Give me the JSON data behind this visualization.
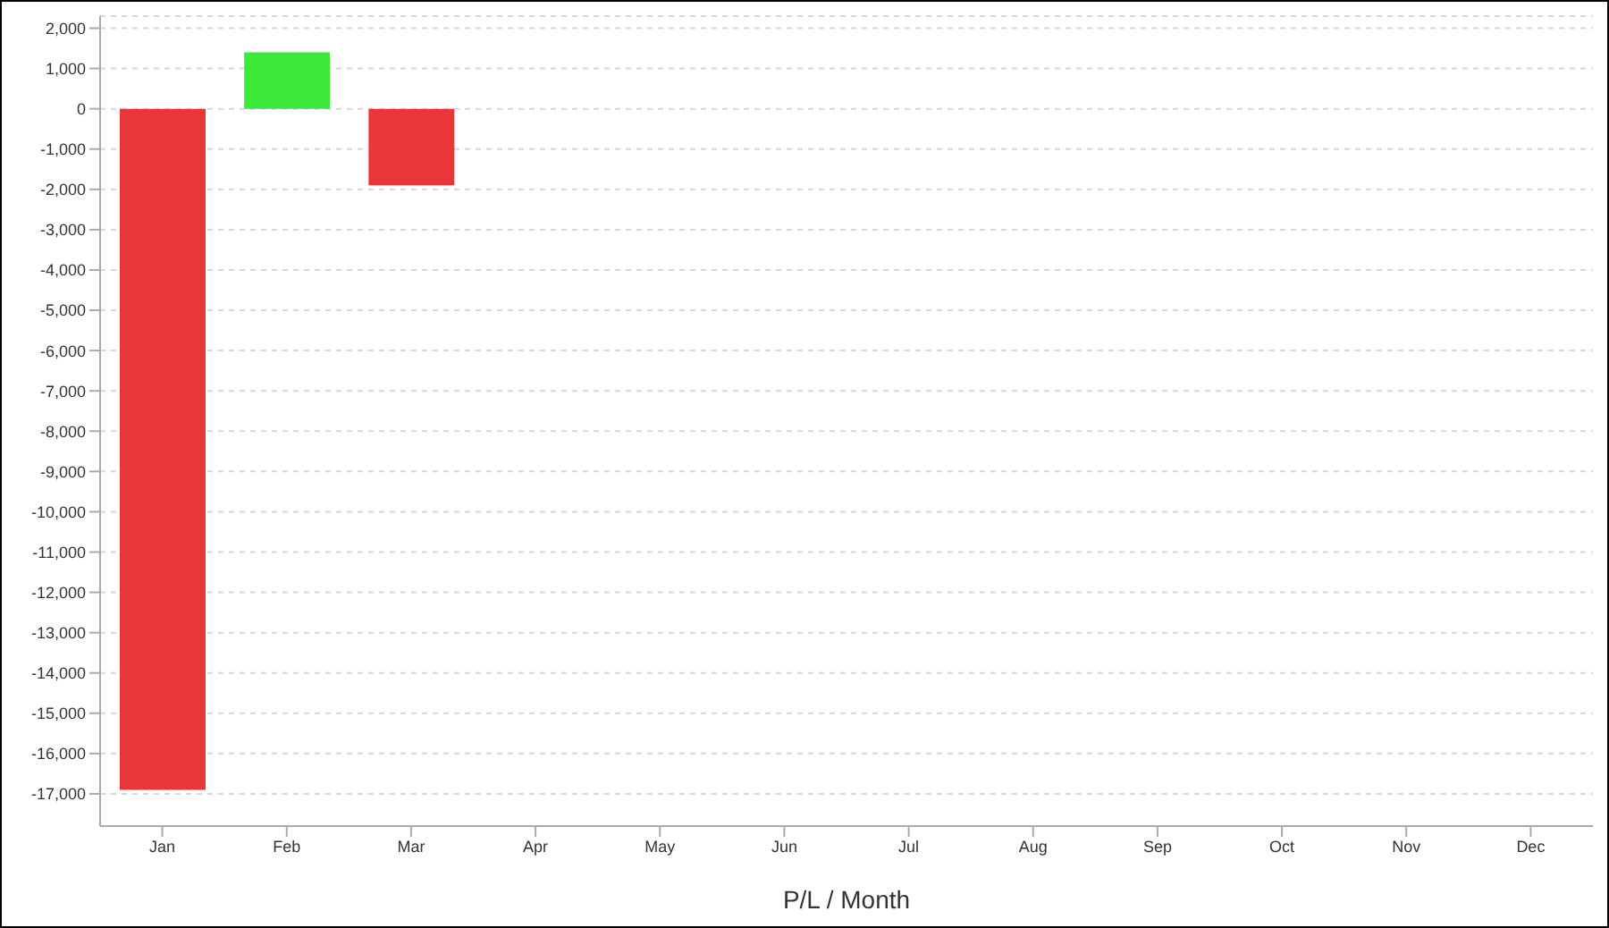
{
  "chart_data": {
    "type": "bar",
    "xlabel": "P/L / Month",
    "categories": [
      "Jan",
      "Feb",
      "Mar",
      "Apr",
      "May",
      "Jun",
      "Jul",
      "Aug",
      "Sep",
      "Oct",
      "Nov",
      "Dec"
    ],
    "values": [
      -16900,
      1400,
      -1900,
      null,
      null,
      null,
      null,
      null,
      null,
      null,
      null,
      null
    ],
    "colors": [
      "#e8363b",
      "#3ee83a",
      "#e8363b",
      null,
      null,
      null,
      null,
      null,
      null,
      null,
      null,
      null
    ],
    "ylim": [
      -17800,
      2300
    ],
    "yticks": [
      {
        "value": -17000,
        "label": "-17,000"
      },
      {
        "value": -16000,
        "label": "-16,000"
      },
      {
        "value": -15000,
        "label": "-15,000"
      },
      {
        "value": -14000,
        "label": "-14,000"
      },
      {
        "value": -13000,
        "label": "-13,000"
      },
      {
        "value": -12000,
        "label": "-12,000"
      },
      {
        "value": -11000,
        "label": "-11,000"
      },
      {
        "value": -10000,
        "label": "-10,000"
      },
      {
        "value": -9000,
        "label": "-9,000"
      },
      {
        "value": -8000,
        "label": "-8,000"
      },
      {
        "value": -7000,
        "label": "-7,000"
      },
      {
        "value": -6000,
        "label": "-6,000"
      },
      {
        "value": -5000,
        "label": "-5,000"
      },
      {
        "value": -4000,
        "label": "-4,000"
      },
      {
        "value": -3000,
        "label": "-3,000"
      },
      {
        "value": -2000,
        "label": "-2,000"
      },
      {
        "value": -1000,
        "label": "-1,000"
      },
      0,
      {
        "value": 1000,
        "label": "1,000"
      },
      {
        "value": 2000,
        "label": "2,000"
      }
    ],
    "grid": "y",
    "legend": false
  }
}
